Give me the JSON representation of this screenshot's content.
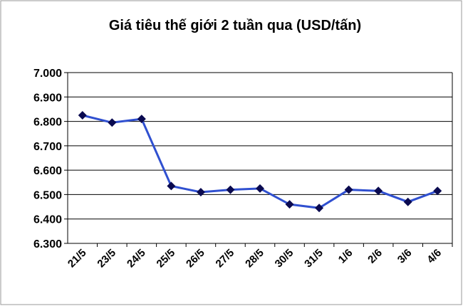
{
  "chart_data": {
    "type": "line",
    "title": "Giá tiêu thế giới 2 tuần qua (USD/tấn)",
    "categories": [
      "21/5",
      "23/5",
      "24/5",
      "25/5",
      "26/5",
      "27/5",
      "28/5",
      "30/5",
      "31/5",
      "1/6",
      "2/6",
      "3/6",
      "4/6"
    ],
    "series": [
      {
        "color": "#3050d0",
        "marker_color": "#0a0a50",
        "values": [
          6825,
          6795,
          6810,
          6535,
          6510,
          6520,
          6525,
          6460,
          6445,
          6520,
          6515,
          6470,
          6515
        ]
      }
    ],
    "ylim": [
      6300,
      7000
    ],
    "yticks": [
      {
        "value": 6300,
        "label": "6.300"
      },
      {
        "value": 6400,
        "label": "6.400"
      },
      {
        "value": 6500,
        "label": "6.500"
      },
      {
        "value": 6600,
        "label": "6.600"
      },
      {
        "value": 6700,
        "label": "6.700"
      },
      {
        "value": 6800,
        "label": "6.800"
      },
      {
        "value": 6900,
        "label": "6.900"
      },
      {
        "value": 7000,
        "label": "7.000"
      }
    ],
    "grid": true
  }
}
